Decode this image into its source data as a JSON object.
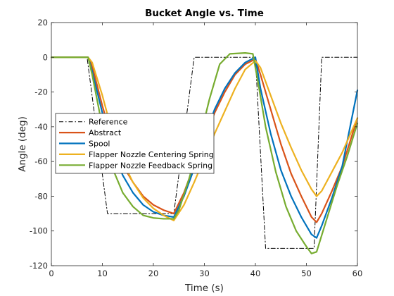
{
  "chart_data": {
    "type": "line",
    "title": "Bucket Angle vs. Time",
    "xlabel": "Time (s)",
    "ylabel": "Angle (deg)",
    "xlim": [
      0,
      60
    ],
    "ylim": [
      -120,
      20
    ],
    "xticks": [
      0,
      10,
      20,
      30,
      40,
      50,
      60
    ],
    "yticks": [
      20,
      0,
      -20,
      -40,
      -60,
      -80,
      -100,
      -120
    ],
    "grid": false,
    "legend_position": "middle-left",
    "series": [
      {
        "name": "Reference",
        "color": "#000000",
        "dash": "dash-dot",
        "points": [
          [
            0,
            0
          ],
          [
            7,
            0
          ],
          [
            11,
            -90
          ],
          [
            24,
            -90
          ],
          [
            28,
            0
          ],
          [
            40,
            0
          ],
          [
            42,
            -110
          ],
          [
            51.5,
            -110
          ],
          [
            53,
            0
          ],
          [
            60,
            0
          ]
        ]
      },
      {
        "name": "Abstract",
        "color": "#D95319",
        "dash": "solid",
        "points": [
          [
            0,
            0
          ],
          [
            7.2,
            0
          ],
          [
            8,
            -5
          ],
          [
            10,
            -28
          ],
          [
            12,
            -48
          ],
          [
            14,
            -62
          ],
          [
            16,
            -72
          ],
          [
            18,
            -80
          ],
          [
            20,
            -85
          ],
          [
            22,
            -88
          ],
          [
            24,
            -90
          ],
          [
            26,
            -78
          ],
          [
            28,
            -62
          ],
          [
            30,
            -46
          ],
          [
            32,
            -32
          ],
          [
            34,
            -20
          ],
          [
            36,
            -10
          ],
          [
            38,
            -4
          ],
          [
            40,
            -1
          ],
          [
            41,
            -10
          ],
          [
            43,
            -30
          ],
          [
            45,
            -50
          ],
          [
            47,
            -67
          ],
          [
            49,
            -80
          ],
          [
            51,
            -92
          ],
          [
            52,
            -95
          ],
          [
            53,
            -90
          ],
          [
            55,
            -77
          ],
          [
            57,
            -63
          ],
          [
            60,
            -35
          ]
        ]
      },
      {
        "name": "Spool",
        "color": "#0072BD",
        "dash": "solid",
        "points": [
          [
            0,
            0
          ],
          [
            7.2,
            0
          ],
          [
            8,
            -8
          ],
          [
            10,
            -32
          ],
          [
            12,
            -54
          ],
          [
            14,
            -68
          ],
          [
            16,
            -78
          ],
          [
            18,
            -85
          ],
          [
            20,
            -89
          ],
          [
            22,
            -91
          ],
          [
            24,
            -92
          ],
          [
            26,
            -80
          ],
          [
            28,
            -64
          ],
          [
            30,
            -46
          ],
          [
            32,
            -30
          ],
          [
            34,
            -18
          ],
          [
            36,
            -9
          ],
          [
            38,
            -3
          ],
          [
            40,
            0
          ],
          [
            41,
            -18
          ],
          [
            43,
            -44
          ],
          [
            45,
            -65
          ],
          [
            47,
            -80
          ],
          [
            49,
            -92
          ],
          [
            51,
            -102
          ],
          [
            52,
            -104
          ],
          [
            53,
            -97
          ],
          [
            55,
            -81
          ],
          [
            57,
            -63
          ],
          [
            60,
            -19
          ]
        ]
      },
      {
        "name": "Flapper Nozzle Centering Spring",
        "color": "#EDB120",
        "dash": "solid",
        "points": [
          [
            0,
            0
          ],
          [
            7.2,
            0
          ],
          [
            8,
            -3
          ],
          [
            10,
            -22
          ],
          [
            12,
            -44
          ],
          [
            14,
            -60
          ],
          [
            16,
            -72
          ],
          [
            18,
            -81
          ],
          [
            20,
            -87
          ],
          [
            22,
            -91
          ],
          [
            24,
            -94
          ],
          [
            26,
            -85
          ],
          [
            28,
            -72
          ],
          [
            30,
            -58
          ],
          [
            32,
            -44
          ],
          [
            34,
            -31
          ],
          [
            36,
            -18
          ],
          [
            38,
            -7
          ],
          [
            40,
            -2
          ],
          [
            41,
            -6
          ],
          [
            43,
            -22
          ],
          [
            45,
            -38
          ],
          [
            47,
            -52
          ],
          [
            49,
            -65
          ],
          [
            51,
            -76
          ],
          [
            52,
            -80
          ],
          [
            53,
            -77
          ],
          [
            55,
            -66
          ],
          [
            57,
            -55
          ],
          [
            60,
            -35
          ]
        ]
      },
      {
        "name": "Flapper Nozzle Feedback Spring",
        "color": "#77AC30",
        "dash": "solid",
        "points": [
          [
            0,
            0
          ],
          [
            7.2,
            0
          ],
          [
            8,
            -10
          ],
          [
            10,
            -40
          ],
          [
            12,
            -64
          ],
          [
            14,
            -78
          ],
          [
            16,
            -86
          ],
          [
            18,
            -91
          ],
          [
            20,
            -92.5
          ],
          [
            22,
            -93
          ],
          [
            24,
            -93
          ],
          [
            25,
            -88
          ],
          [
            27,
            -70
          ],
          [
            29,
            -48
          ],
          [
            31,
            -24
          ],
          [
            33,
            -4
          ],
          [
            35,
            2
          ],
          [
            38,
            2.5
          ],
          [
            39.5,
            2
          ],
          [
            40.5,
            -14
          ],
          [
            42,
            -40
          ],
          [
            44,
            -66
          ],
          [
            46,
            -86
          ],
          [
            48,
            -100
          ],
          [
            50,
            -109
          ],
          [
            51,
            -113
          ],
          [
            52,
            -112
          ],
          [
            54,
            -93
          ],
          [
            56,
            -74
          ],
          [
            58,
            -57
          ],
          [
            60,
            -38
          ]
        ]
      }
    ]
  }
}
